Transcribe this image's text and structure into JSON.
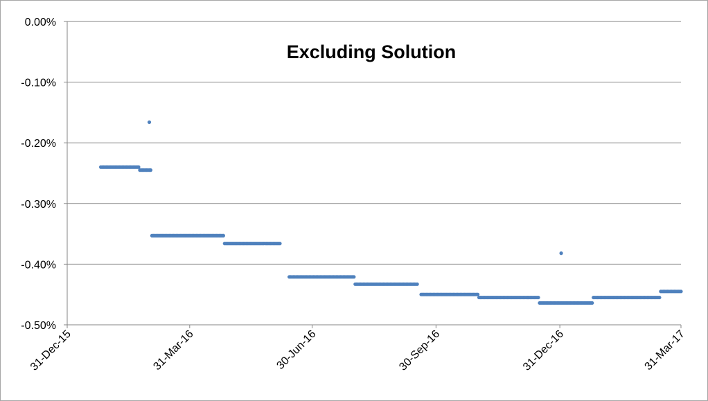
{
  "chart_data": {
    "type": "scatter",
    "title": "Excluding Solution",
    "xlabel": "",
    "ylabel": "",
    "x_tick_labels": [
      "31-Dec-15",
      "31-Mar-16",
      "30-Jun-16",
      "30-Sep-16",
      "31-Dec-16",
      "31-Mar-17"
    ],
    "x_ticks": [
      "2015-12-31",
      "2016-03-31",
      "2016-06-30",
      "2016-09-30",
      "2016-12-31",
      "2017-03-31"
    ],
    "xlim": [
      "2015-12-31",
      "2017-03-31"
    ],
    "y_tick_labels": [
      "0.00%",
      "-0.10%",
      "-0.20%",
      "-0.30%",
      "-0.40%",
      "-0.50%"
    ],
    "y_ticks": [
      0,
      -0.1,
      -0.2,
      -0.3,
      -0.4,
      -0.5
    ],
    "ylim": [
      -0.5,
      0
    ],
    "grid": "horizontal",
    "legend": "none",
    "marker_color": "#4f81bd",
    "segments": [
      {
        "start": "2016-01-25",
        "end": "2016-02-22",
        "value": -0.24
      },
      {
        "start": "2016-02-23",
        "end": "2016-03-02",
        "value": -0.245
      },
      {
        "start": "2016-03-03",
        "end": "2016-04-25",
        "value": -0.353
      },
      {
        "start": "2016-04-26",
        "end": "2016-06-06",
        "value": -0.366
      },
      {
        "start": "2016-06-13",
        "end": "2016-07-31",
        "value": -0.421
      },
      {
        "start": "2016-08-01",
        "end": "2016-09-16",
        "value": -0.433
      },
      {
        "start": "2016-09-19",
        "end": "2016-10-31",
        "value": -0.45
      },
      {
        "start": "2016-11-01",
        "end": "2016-12-15",
        "value": -0.455
      },
      {
        "start": "2016-12-16",
        "end": "2017-01-24",
        "value": -0.464
      },
      {
        "start": "2017-01-25",
        "end": "2017-03-15",
        "value": -0.455
      },
      {
        "start": "2017-03-16",
        "end": "2017-03-31",
        "value": -0.445
      }
    ],
    "outliers": [
      {
        "x": "2016-03-01",
        "y": -0.166
      },
      {
        "x": "2017-01-01",
        "y": -0.382
      }
    ]
  }
}
